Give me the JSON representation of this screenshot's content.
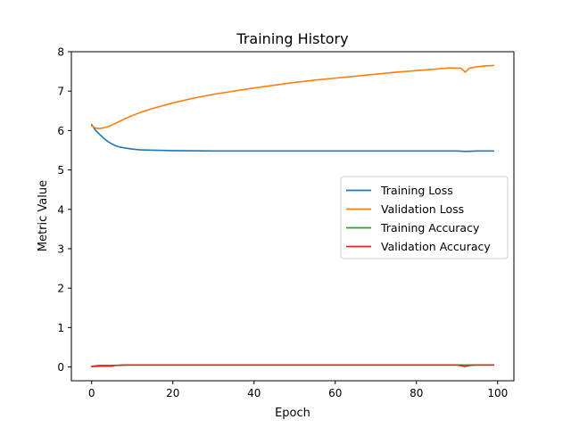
{
  "chart_data": {
    "type": "line",
    "title": "Training History",
    "xlabel": "Epoch",
    "ylabel": "Metric Value",
    "xlim": [
      -5,
      104
    ],
    "ylim": [
      -0.35,
      8.0
    ],
    "xticks": [
      0,
      20,
      40,
      60,
      80,
      100
    ],
    "yticks": [
      0,
      1,
      2,
      3,
      4,
      5,
      6,
      7,
      8
    ],
    "grid": false,
    "legend_position": "center-right",
    "series": [
      {
        "name": "Training Loss",
        "color": "#1f77b4",
        "x": [
          0,
          1,
          2,
          3,
          4,
          5,
          6,
          7,
          8,
          10,
          12,
          15,
          20,
          30,
          40,
          50,
          60,
          70,
          80,
          90,
          92,
          95,
          99
        ],
        "values": [
          6.15,
          6.0,
          5.9,
          5.8,
          5.72,
          5.66,
          5.61,
          5.58,
          5.56,
          5.53,
          5.51,
          5.5,
          5.49,
          5.48,
          5.48,
          5.48,
          5.48,
          5.48,
          5.48,
          5.48,
          5.47,
          5.48,
          5.48
        ]
      },
      {
        "name": "Validation Loss",
        "color": "#ff7f0e",
        "x": [
          0,
          1,
          2,
          3,
          4,
          5,
          6,
          8,
          10,
          12,
          15,
          20,
          25,
          30,
          35,
          40,
          45,
          50,
          55,
          60,
          65,
          70,
          75,
          80,
          85,
          88,
          91,
          92,
          93,
          95,
          97,
          99
        ],
        "values": [
          6.12,
          6.06,
          6.05,
          6.07,
          6.1,
          6.14,
          6.19,
          6.29,
          6.38,
          6.46,
          6.56,
          6.7,
          6.82,
          6.92,
          7.0,
          7.08,
          7.15,
          7.22,
          7.28,
          7.33,
          7.38,
          7.43,
          7.48,
          7.52,
          7.56,
          7.59,
          7.58,
          7.48,
          7.58,
          7.62,
          7.64,
          7.65
        ]
      },
      {
        "name": "Training Accuracy",
        "color": "#2ca02c",
        "x": [
          0,
          1,
          2,
          5,
          10,
          20,
          40,
          60,
          80,
          90,
          92,
          94,
          99
        ],
        "values": [
          0.01,
          0.03,
          0.04,
          0.04,
          0.05,
          0.05,
          0.05,
          0.05,
          0.05,
          0.05,
          0.05,
          0.05,
          0.05
        ]
      },
      {
        "name": "Validation Accuracy",
        "color": "#d62728",
        "x": [
          0,
          2,
          4,
          5,
          6,
          8,
          10,
          20,
          40,
          60,
          80,
          90,
          91,
          92,
          93,
          95,
          99
        ],
        "values": [
          0.01,
          0.02,
          0.02,
          0.02,
          0.04,
          0.05,
          0.05,
          0.05,
          0.05,
          0.05,
          0.05,
          0.05,
          0.03,
          0.01,
          0.04,
          0.05,
          0.05
        ]
      }
    ]
  }
}
